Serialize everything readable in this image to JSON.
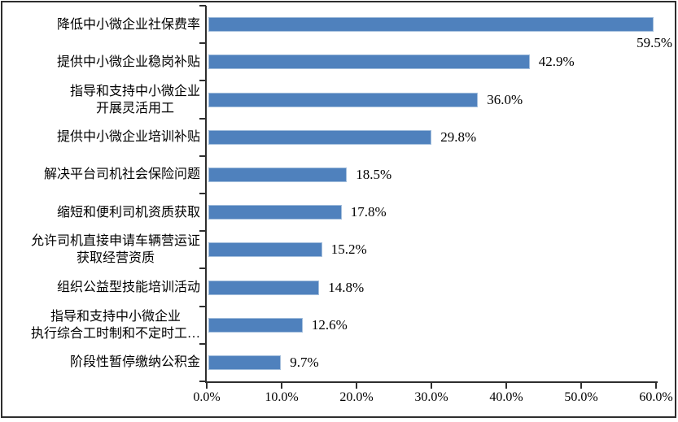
{
  "chart_data": {
    "type": "bar",
    "orientation": "horizontal",
    "title": "",
    "xlabel": "",
    "ylabel": "",
    "xlim": [
      0,
      60
    ],
    "x_tick_values": [
      0,
      10,
      20,
      30,
      40,
      50,
      60
    ],
    "x_tick_labels": [
      "0.0%",
      "10.0%",
      "20.0%",
      "30.0%",
      "40.0%",
      "50.0%",
      "60.0%"
    ],
    "grid": false,
    "legend": false,
    "colors": {
      "bar_fill": "#4F81BD",
      "bar_border": "#A3BEDC",
      "axis": "#2e2e2e",
      "text": "#000000",
      "background": "#ffffff"
    },
    "points": [
      {
        "category": "降低中小微企业社保费率",
        "lines": [
          "降低中小微企业社保费率"
        ],
        "value": 59.5,
        "label": "59.5%",
        "label_below": true
      },
      {
        "category": "提供中小微企业稳岗补贴",
        "lines": [
          "提供中小微企业稳岗补贴"
        ],
        "value": 42.9,
        "label": "42.9%"
      },
      {
        "category": "指导和支持中小微企业开展灵活用工",
        "lines": [
          "指导和支持中小微企业",
          "开展灵活用工"
        ],
        "value": 36.0,
        "label": "36.0%"
      },
      {
        "category": "提供中小微企业培训补贴",
        "lines": [
          "提供中小微企业培训补贴"
        ],
        "value": 29.8,
        "label": "29.8%"
      },
      {
        "category": "解决平台司机社会保险问题",
        "lines": [
          "解决平台司机社会保险问题"
        ],
        "value": 18.5,
        "label": "18.5%"
      },
      {
        "category": "缩短和便利司机资质获取",
        "lines": [
          "缩短和便利司机资质获取"
        ],
        "value": 17.8,
        "label": "17.8%"
      },
      {
        "category": "允许司机直接申请车辆营运证获取经营资质",
        "lines": [
          "允许司机直接申请车辆营运证",
          "获取经营资质"
        ],
        "value": 15.2,
        "label": "15.2%"
      },
      {
        "category": "组织公益型技能培训活动",
        "lines": [
          "组织公益型技能培训活动"
        ],
        "value": 14.8,
        "label": "14.8%"
      },
      {
        "category": "指导和支持中小微企业执行综合工时制和不定时工…",
        "lines": [
          "指导和支持中小微企业",
          "执行综合工时制和不定时工…"
        ],
        "value": 12.6,
        "label": "12.6%"
      },
      {
        "category": "阶段性暂停缴纳公积金",
        "lines": [
          "阶段性暂停缴纳公积金"
        ],
        "value": 9.7,
        "label": "9.7%"
      }
    ]
  }
}
